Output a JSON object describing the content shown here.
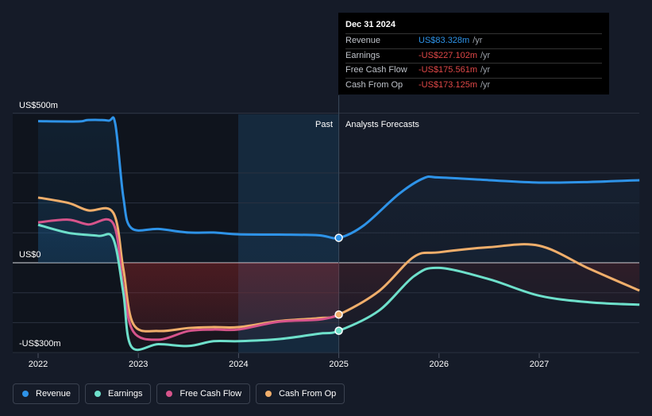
{
  "chart_data": {
    "type": "line",
    "y_unit": "US$ millions",
    "ylim": [
      -300,
      500
    ],
    "y_tick_labels": [
      "US$500m",
      "US$0",
      "-US$300m"
    ],
    "x_tick_labels": [
      "2022",
      "2023",
      "2024",
      "2025",
      "2026",
      "2027"
    ],
    "xlim": [
      2022,
      2028
    ],
    "grid": true,
    "past_label": "Past",
    "forecast_label": "Analysts Forecasts",
    "series": [
      {
        "name": "Revenue",
        "color": "#2e93e8",
        "past": [
          [
            2022.0,
            473
          ],
          [
            2022.4,
            472
          ],
          [
            2022.5,
            477
          ],
          [
            2022.7,
            475
          ],
          [
            2022.77,
            464
          ],
          [
            2022.85,
            220
          ],
          [
            2022.93,
            116
          ],
          [
            2023.2,
            113
          ],
          [
            2023.5,
            101
          ],
          [
            2023.75,
            101
          ],
          [
            2024.0,
            95
          ],
          [
            2024.4,
            94
          ],
          [
            2024.8,
            92
          ],
          [
            2025.0,
            83.328
          ]
        ],
        "forecast": [
          [
            2025.0,
            83.328
          ],
          [
            2025.25,
            125
          ],
          [
            2025.6,
            230
          ],
          [
            2025.85,
            283
          ],
          [
            2026.0,
            285
          ],
          [
            2026.5,
            276
          ],
          [
            2027.0,
            268
          ],
          [
            2027.5,
            270
          ],
          [
            2028.0,
            276
          ]
        ]
      },
      {
        "name": "Earnings",
        "color": "#6ee0cb",
        "past": [
          [
            2022.0,
            127
          ],
          [
            2022.3,
            100
          ],
          [
            2022.6,
            90
          ],
          [
            2022.75,
            80
          ],
          [
            2022.85,
            -100
          ],
          [
            2022.93,
            -280
          ],
          [
            2023.2,
            -272
          ],
          [
            2023.5,
            -278
          ],
          [
            2023.75,
            -262
          ],
          [
            2024.0,
            -262
          ],
          [
            2024.4,
            -255
          ],
          [
            2024.8,
            -237
          ],
          [
            2025.0,
            -227.102
          ]
        ],
        "forecast": [
          [
            2025.0,
            -227.102
          ],
          [
            2025.4,
            -160
          ],
          [
            2025.75,
            -45
          ],
          [
            2026.0,
            -17
          ],
          [
            2026.5,
            -55
          ],
          [
            2027.0,
            -110
          ],
          [
            2027.5,
            -132
          ],
          [
            2028.0,
            -140
          ]
        ]
      },
      {
        "name": "Free Cash Flow",
        "color": "#d6548b",
        "past": [
          [
            2022.0,
            135
          ],
          [
            2022.3,
            144
          ],
          [
            2022.5,
            128
          ],
          [
            2022.75,
            131
          ],
          [
            2022.85,
            -80
          ],
          [
            2022.95,
            -230
          ],
          [
            2023.2,
            -257
          ],
          [
            2023.5,
            -228
          ],
          [
            2023.75,
            -223
          ],
          [
            2024.0,
            -223
          ],
          [
            2024.4,
            -197
          ],
          [
            2024.8,
            -190
          ],
          [
            2025.0,
            -175.561
          ]
        ]
      },
      {
        "name": "Cash From Op",
        "color": "#f0ae6b",
        "past": [
          [
            2022.0,
            218
          ],
          [
            2022.3,
            200
          ],
          [
            2022.5,
            175
          ],
          [
            2022.75,
            167
          ],
          [
            2022.85,
            -20
          ],
          [
            2022.95,
            -205
          ],
          [
            2023.2,
            -228
          ],
          [
            2023.5,
            -218
          ],
          [
            2023.75,
            -215
          ],
          [
            2024.0,
            -215
          ],
          [
            2024.4,
            -195
          ],
          [
            2024.8,
            -185
          ],
          [
            2025.0,
            -173.125
          ]
        ],
        "forecast": [
          [
            2025.0,
            -173.125
          ],
          [
            2025.4,
            -95
          ],
          [
            2025.75,
            20
          ],
          [
            2026.0,
            35
          ],
          [
            2026.5,
            52
          ],
          [
            2027.0,
            57
          ],
          [
            2027.5,
            -20
          ],
          [
            2028.0,
            -93
          ]
        ]
      }
    ]
  },
  "tooltip": {
    "date": "Dec 31 2024",
    "rows": [
      {
        "name": "Revenue",
        "value": "US$83.328m",
        "unit": "/yr",
        "color": "#2e93e8"
      },
      {
        "name": "Earnings",
        "value": "-US$227.102m",
        "unit": "/yr",
        "color": "#e04848"
      },
      {
        "name": "Free Cash Flow",
        "value": "-US$175.561m",
        "unit": "/yr",
        "color": "#e04848"
      },
      {
        "name": "Cash From Op",
        "value": "-US$173.125m",
        "unit": "/yr",
        "color": "#e04848"
      }
    ]
  },
  "legend": [
    {
      "label": "Revenue",
      "color": "#2e93e8"
    },
    {
      "label": "Earnings",
      "color": "#6ee0cb"
    },
    {
      "label": "Free Cash Flow",
      "color": "#d6548b"
    },
    {
      "label": "Cash From Op",
      "color": "#f0ae6b"
    }
  ]
}
